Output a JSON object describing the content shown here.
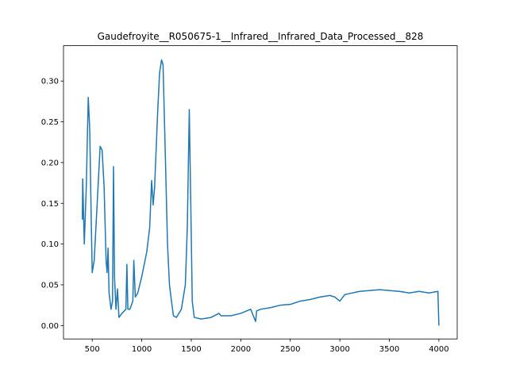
{
  "chart_data": {
    "type": "line",
    "title": "Gaudefroyite__R050675-1__Infrared__Infrared_Data_Processed__828",
    "x": [
      400,
      404,
      410,
      420,
      440,
      460,
      475,
      490,
      500,
      520,
      550,
      580,
      600,
      620,
      640,
      650,
      660,
      670,
      690,
      705,
      715,
      725,
      740,
      755,
      770,
      800,
      840,
      850,
      860,
      880,
      910,
      920,
      935,
      960,
      1000,
      1050,
      1080,
      1100,
      1115,
      1130,
      1160,
      1180,
      1200,
      1215,
      1240,
      1260,
      1280,
      1300,
      1320,
      1350,
      1400,
      1440,
      1460,
      1480,
      1495,
      1510,
      1530,
      1600,
      1700,
      1780,
      1800,
      1900,
      2000,
      2100,
      2150,
      2160,
      2200,
      2300,
      2400,
      2500,
      2600,
      2700,
      2800,
      2900,
      2950,
      3000,
      3050,
      3200,
      3400,
      3600,
      3700,
      3800,
      3900,
      3990,
      4000
    ],
    "series": [
      {
        "color": "#1f77b4",
        "values": [
          0.13,
          0.18,
          0.15,
          0.1,
          0.17,
          0.28,
          0.24,
          0.13,
          0.065,
          0.08,
          0.15,
          0.22,
          0.215,
          0.17,
          0.08,
          0.065,
          0.095,
          0.04,
          0.02,
          0.03,
          0.195,
          0.06,
          0.02,
          0.045,
          0.01,
          0.015,
          0.02,
          0.075,
          0.02,
          0.02,
          0.03,
          0.08,
          0.035,
          0.04,
          0.06,
          0.09,
          0.12,
          0.178,
          0.148,
          0.17,
          0.26,
          0.31,
          0.326,
          0.32,
          0.2,
          0.1,
          0.05,
          0.03,
          0.012,
          0.01,
          0.02,
          0.05,
          0.12,
          0.265,
          0.15,
          0.03,
          0.01,
          0.008,
          0.01,
          0.015,
          0.012,
          0.012,
          0.015,
          0.02,
          0.005,
          0.018,
          0.02,
          0.022,
          0.025,
          0.026,
          0.03,
          0.032,
          0.035,
          0.037,
          0.035,
          0.03,
          0.038,
          0.042,
          0.044,
          0.042,
          0.04,
          0.042,
          0.04,
          0.042,
          0.0
        ]
      }
    ],
    "xlim": [
      210,
      4185
    ],
    "ylim": [
      -0.0164,
      0.3434
    ],
    "xticks": [
      500,
      1000,
      1500,
      2000,
      2500,
      3000,
      3500,
      4000
    ],
    "yticks": [
      {
        "value": 0,
        "label": "0.00"
      },
      {
        "value": 0.05,
        "label": "0.05"
      },
      {
        "value": 0.1,
        "label": "0.10"
      },
      {
        "value": 0.15,
        "label": "0.15"
      },
      {
        "value": 0.2,
        "label": "0.20"
      },
      {
        "value": 0.25,
        "label": "0.25"
      },
      {
        "value": 0.3,
        "label": "0.30"
      }
    ]
  }
}
